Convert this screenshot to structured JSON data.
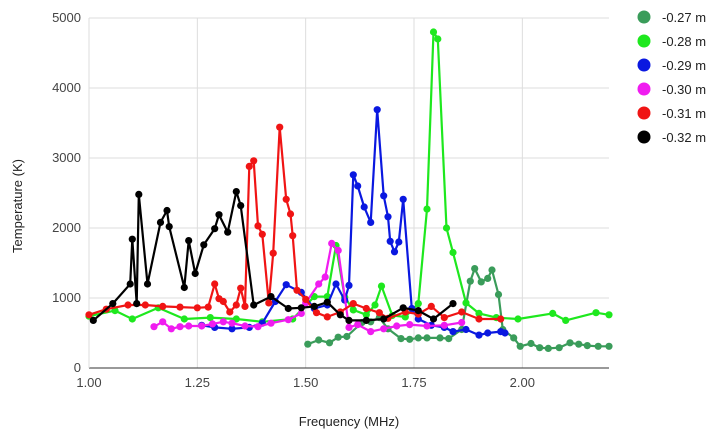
{
  "chart_data": {
    "type": "line",
    "xlabel": "Frequency (MHz)",
    "ylabel": "Temperature (K)",
    "xlim": [
      1.0,
      2.2
    ],
    "ylim": [
      0,
      5000
    ],
    "x_ticks": [
      1.0,
      1.25,
      1.5,
      1.75,
      2.0
    ],
    "x_tick_labels": [
      "1.00",
      "1.25",
      "1.50",
      "1.75",
      "2.00"
    ],
    "y_ticks": [
      0,
      1000,
      2000,
      3000,
      4000,
      5000
    ],
    "y_tick_labels": [
      "0",
      "1000",
      "2000",
      "3000",
      "4000",
      "5000"
    ],
    "grid": true,
    "legend_position": "right",
    "series": [
      {
        "name": "-0.27 m",
        "color": "#3a9c5a",
        "points": [
          [
            1.505,
            340
          ],
          [
            1.53,
            400
          ],
          [
            1.555,
            360
          ],
          [
            1.575,
            440
          ],
          [
            1.595,
            450
          ],
          [
            1.63,
            650
          ],
          [
            1.65,
            660
          ],
          [
            1.67,
            720
          ],
          [
            1.69,
            560
          ],
          [
            1.72,
            420
          ],
          [
            1.74,
            410
          ],
          [
            1.76,
            430
          ],
          [
            1.78,
            430
          ],
          [
            1.81,
            430
          ],
          [
            1.83,
            420
          ],
          [
            1.86,
            550
          ],
          [
            1.88,
            1240
          ],
          [
            1.89,
            1420
          ],
          [
            1.905,
            1230
          ],
          [
            1.92,
            1280
          ],
          [
            1.93,
            1400
          ],
          [
            1.945,
            1050
          ],
          [
            1.955,
            550
          ],
          [
            1.98,
            430
          ],
          [
            1.995,
            310
          ],
          [
            2.02,
            350
          ],
          [
            2.04,
            290
          ],
          [
            2.06,
            280
          ],
          [
            2.085,
            290
          ],
          [
            2.11,
            360
          ],
          [
            2.13,
            340
          ],
          [
            2.15,
            320
          ],
          [
            2.175,
            310
          ],
          [
            2.2,
            310
          ]
        ]
      },
      {
        "name": "-0.28 m",
        "color": "#1ee81e",
        "points": [
          [
            1.0,
            740
          ],
          [
            1.06,
            820
          ],
          [
            1.1,
            700
          ],
          [
            1.16,
            860
          ],
          [
            1.22,
            700
          ],
          [
            1.28,
            720
          ],
          [
            1.34,
            700
          ],
          [
            1.4,
            660
          ],
          [
            1.47,
            700
          ],
          [
            1.52,
            1020
          ],
          [
            1.55,
            1020
          ],
          [
            1.57,
            1750
          ],
          [
            1.59,
            1010
          ],
          [
            1.61,
            830
          ],
          [
            1.64,
            760
          ],
          [
            1.66,
            900
          ],
          [
            1.675,
            1170
          ],
          [
            1.7,
            750
          ],
          [
            1.73,
            730
          ],
          [
            1.76,
            920
          ],
          [
            1.78,
            2270
          ],
          [
            1.795,
            4800
          ],
          [
            1.805,
            4700
          ],
          [
            1.825,
            2000
          ],
          [
            1.84,
            1650
          ],
          [
            1.87,
            930
          ],
          [
            1.9,
            780
          ],
          [
            1.94,
            720
          ],
          [
            1.99,
            700
          ],
          [
            2.07,
            780
          ],
          [
            2.1,
            680
          ],
          [
            2.17,
            790
          ],
          [
            2.2,
            760
          ]
        ]
      },
      {
        "name": "-0.29 m",
        "color": "#0a18e0",
        "points": [
          [
            1.26,
            610
          ],
          [
            1.29,
            580
          ],
          [
            1.33,
            560
          ],
          [
            1.37,
            580
          ],
          [
            1.4,
            640
          ],
          [
            1.43,
            950
          ],
          [
            1.455,
            1190
          ],
          [
            1.49,
            1080
          ],
          [
            1.52,
            850
          ],
          [
            1.55,
            900
          ],
          [
            1.57,
            1200
          ],
          [
            1.59,
            970
          ],
          [
            1.6,
            1180
          ],
          [
            1.61,
            2760
          ],
          [
            1.62,
            2600
          ],
          [
            1.635,
            2300
          ],
          [
            1.65,
            2080
          ],
          [
            1.665,
            3690
          ],
          [
            1.68,
            2460
          ],
          [
            1.69,
            2160
          ],
          [
            1.695,
            1810
          ],
          [
            1.705,
            1660
          ],
          [
            1.715,
            1800
          ],
          [
            1.725,
            2410
          ],
          [
            1.745,
            850
          ],
          [
            1.76,
            700
          ],
          [
            1.79,
            610
          ],
          [
            1.82,
            580
          ],
          [
            1.84,
            520
          ],
          [
            1.87,
            550
          ],
          [
            1.9,
            470
          ],
          [
            1.92,
            500
          ],
          [
            1.95,
            520
          ],
          [
            1.96,
            500
          ]
        ]
      },
      {
        "name": "-0.30 m",
        "color": "#f01cf0",
        "points": [
          [
            1.15,
            590
          ],
          [
            1.17,
            660
          ],
          [
            1.19,
            560
          ],
          [
            1.21,
            590
          ],
          [
            1.23,
            600
          ],
          [
            1.26,
            600
          ],
          [
            1.285,
            630
          ],
          [
            1.31,
            660
          ],
          [
            1.33,
            640
          ],
          [
            1.36,
            600
          ],
          [
            1.39,
            590
          ],
          [
            1.42,
            640
          ],
          [
            1.46,
            690
          ],
          [
            1.49,
            780
          ],
          [
            1.5,
            930
          ],
          [
            1.53,
            1200
          ],
          [
            1.545,
            1300
          ],
          [
            1.56,
            1780
          ],
          [
            1.575,
            1680
          ],
          [
            1.6,
            580
          ],
          [
            1.62,
            620
          ],
          [
            1.65,
            520
          ],
          [
            1.68,
            560
          ],
          [
            1.71,
            600
          ],
          [
            1.74,
            620
          ],
          [
            1.78,
            600
          ],
          [
            1.82,
            610
          ],
          [
            1.86,
            650
          ]
        ]
      },
      {
        "name": "-0.31 m",
        "color": "#f01414",
        "points": [
          [
            1.0,
            760
          ],
          [
            1.04,
            840
          ],
          [
            1.09,
            900
          ],
          [
            1.13,
            900
          ],
          [
            1.17,
            880
          ],
          [
            1.21,
            870
          ],
          [
            1.25,
            860
          ],
          [
            1.275,
            870
          ],
          [
            1.29,
            1200
          ],
          [
            1.3,
            990
          ],
          [
            1.31,
            950
          ],
          [
            1.325,
            800
          ],
          [
            1.34,
            900
          ],
          [
            1.35,
            1140
          ],
          [
            1.36,
            880
          ],
          [
            1.37,
            2880
          ],
          [
            1.38,
            2960
          ],
          [
            1.39,
            2030
          ],
          [
            1.4,
            1910
          ],
          [
            1.415,
            930
          ],
          [
            1.425,
            1640
          ],
          [
            1.44,
            3440
          ],
          [
            1.455,
            2410
          ],
          [
            1.465,
            2200
          ],
          [
            1.47,
            1890
          ],
          [
            1.48,
            1110
          ],
          [
            1.5,
            980
          ],
          [
            1.525,
            790
          ],
          [
            1.55,
            730
          ],
          [
            1.58,
            800
          ],
          [
            1.61,
            920
          ],
          [
            1.64,
            850
          ],
          [
            1.67,
            790
          ],
          [
            1.69,
            710
          ],
          [
            1.73,
            800
          ],
          [
            1.76,
            770
          ],
          [
            1.79,
            880
          ],
          [
            1.82,
            720
          ],
          [
            1.86,
            800
          ],
          [
            1.9,
            700
          ],
          [
            1.95,
            700
          ]
        ]
      },
      {
        "name": "-0.32 m",
        "color": "#000000",
        "points": [
          [
            1.01,
            680
          ],
          [
            1.055,
            920
          ],
          [
            1.095,
            1200
          ],
          [
            1.1,
            1840
          ],
          [
            1.11,
            920
          ],
          [
            1.115,
            2480
          ],
          [
            1.135,
            1200
          ],
          [
            1.165,
            2080
          ],
          [
            1.18,
            2250
          ],
          [
            1.185,
            2020
          ],
          [
            1.22,
            1150
          ],
          [
            1.23,
            1820
          ],
          [
            1.245,
            1350
          ],
          [
            1.265,
            1760
          ],
          [
            1.29,
            1990
          ],
          [
            1.3,
            2190
          ],
          [
            1.32,
            1940
          ],
          [
            1.34,
            2520
          ],
          [
            1.35,
            2320
          ],
          [
            1.38,
            900
          ],
          [
            1.42,
            1020
          ],
          [
            1.46,
            850
          ],
          [
            1.49,
            860
          ],
          [
            1.52,
            880
          ],
          [
            1.55,
            940
          ],
          [
            1.58,
            760
          ],
          [
            1.6,
            680
          ],
          [
            1.64,
            680
          ],
          [
            1.68,
            700
          ],
          [
            1.725,
            860
          ],
          [
            1.76,
            820
          ],
          [
            1.795,
            700
          ],
          [
            1.84,
            920
          ]
        ]
      }
    ]
  }
}
